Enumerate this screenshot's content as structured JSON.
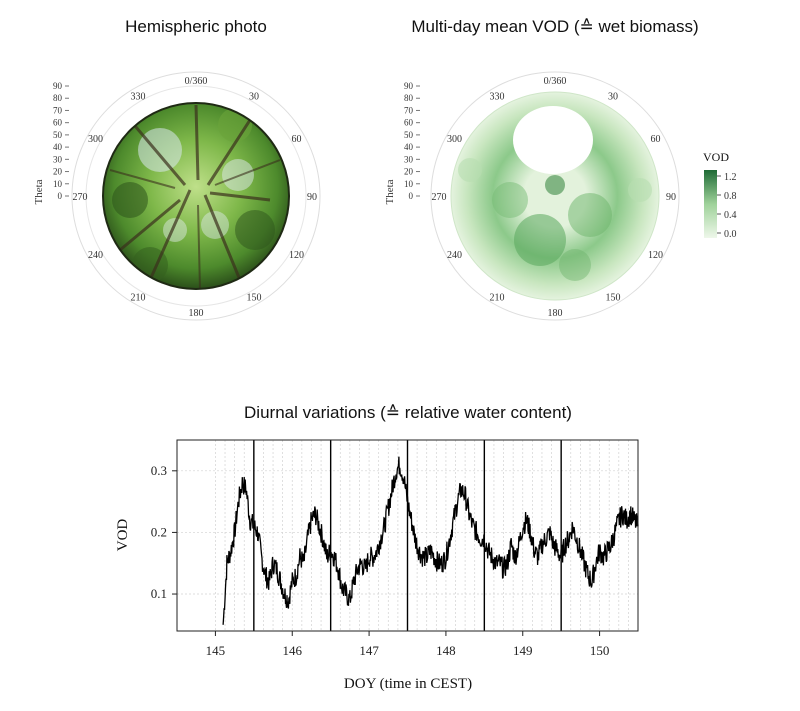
{
  "panels": {
    "hemi_title": "Hemispheric photo",
    "vodmap_title": "Multi-day mean VOD (≙ wet biomass)",
    "diurnal_title": "Diurnal variations (≙ relative water content)"
  },
  "polar": {
    "theta_label": "Theta",
    "theta_ticks": [
      "0",
      "10",
      "20",
      "30",
      "40",
      "50",
      "60",
      "70",
      "80",
      "90"
    ],
    "azimuth_labels": [
      "0/360",
      "30",
      "60",
      "90",
      "120",
      "150",
      "180",
      "210",
      "240",
      "270",
      "300",
      "330"
    ]
  },
  "legend": {
    "title": "VOD",
    "ticks": [
      "0.0",
      "0.4",
      "0.8",
      "1.2"
    ],
    "color_low": "#eef7ea",
    "color_high": "#1f6b36"
  },
  "colors": {
    "canopy_dark": "#2f5a1c",
    "canopy_light": "#9fcf5a",
    "sky": "#dfeaf0",
    "line": "#000000",
    "grid": "#c8c8c8"
  },
  "chart_data": {
    "type": "line",
    "xlabel": "DOY (time in CEST)",
    "ylabel": "VOD",
    "xlim": [
      144.5,
      150.5
    ],
    "ylim": [
      0.04,
      0.35
    ],
    "xticks": [
      "145",
      "146",
      "147",
      "148",
      "149",
      "150"
    ],
    "yticks": [
      "0.1",
      "0.2",
      "0.3"
    ],
    "day_boundaries": [
      145.5,
      146.5,
      147.5,
      148.5,
      149.5
    ],
    "series": [
      {
        "x": [
          145.1,
          145.15,
          145.2,
          145.25,
          145.3,
          145.35,
          145.4,
          145.45,
          145.5,
          145.55,
          145.6,
          145.65,
          145.7,
          145.75,
          145.8,
          145.85,
          145.9,
          145.95,
          146.0,
          146.05,
          146.1,
          146.15,
          146.2,
          146.25,
          146.3,
          146.35,
          146.4,
          146.45,
          146.5,
          146.55,
          146.6,
          146.65,
          146.7,
          146.75,
          146.8,
          146.85,
          146.9,
          146.95,
          147.0,
          147.05,
          147.1,
          147.15,
          147.2,
          147.25,
          147.3,
          147.35,
          147.4,
          147.45,
          147.5,
          147.55,
          147.6,
          147.65,
          147.7,
          147.75,
          147.8,
          147.85,
          147.9,
          147.95,
          148.0,
          148.05,
          148.1,
          148.15,
          148.2,
          148.25,
          148.3,
          148.35,
          148.4,
          148.45,
          148.5,
          148.55,
          148.6,
          148.65,
          148.7,
          148.75,
          148.8,
          148.85,
          148.9,
          148.95,
          149.0,
          149.05,
          149.1,
          149.15,
          149.2,
          149.25,
          149.3,
          149.35,
          149.4,
          149.45,
          149.5,
          149.55,
          149.6,
          149.65,
          149.7,
          149.75,
          149.8,
          149.85,
          149.9,
          149.95,
          150.0,
          150.05,
          150.1,
          150.15,
          150.2,
          150.25,
          150.3,
          150.35,
          150.4,
          150.45,
          150.5
        ],
        "values": [
          0.05,
          0.15,
          0.17,
          0.2,
          0.25,
          0.28,
          0.27,
          0.22,
          0.21,
          0.2,
          0.16,
          0.13,
          0.12,
          0.15,
          0.14,
          0.12,
          0.1,
          0.09,
          0.12,
          0.13,
          0.16,
          0.15,
          0.19,
          0.22,
          0.23,
          0.21,
          0.19,
          0.16,
          0.17,
          0.16,
          0.14,
          0.11,
          0.1,
          0.09,
          0.12,
          0.14,
          0.15,
          0.14,
          0.16,
          0.16,
          0.17,
          0.19,
          0.21,
          0.24,
          0.27,
          0.3,
          0.31,
          0.29,
          0.25,
          0.22,
          0.19,
          0.17,
          0.16,
          0.16,
          0.17,
          0.16,
          0.15,
          0.15,
          0.16,
          0.19,
          0.22,
          0.25,
          0.27,
          0.26,
          0.23,
          0.21,
          0.2,
          0.19,
          0.19,
          0.17,
          0.16,
          0.15,
          0.15,
          0.14,
          0.15,
          0.18,
          0.16,
          0.18,
          0.21,
          0.22,
          0.2,
          0.17,
          0.16,
          0.18,
          0.19,
          0.2,
          0.18,
          0.17,
          0.16,
          0.18,
          0.19,
          0.21,
          0.19,
          0.17,
          0.15,
          0.13,
          0.12,
          0.15,
          0.17,
          0.16,
          0.17,
          0.18,
          0.2,
          0.22,
          0.23,
          0.22,
          0.23,
          0.22,
          0.21
        ]
      }
    ]
  }
}
